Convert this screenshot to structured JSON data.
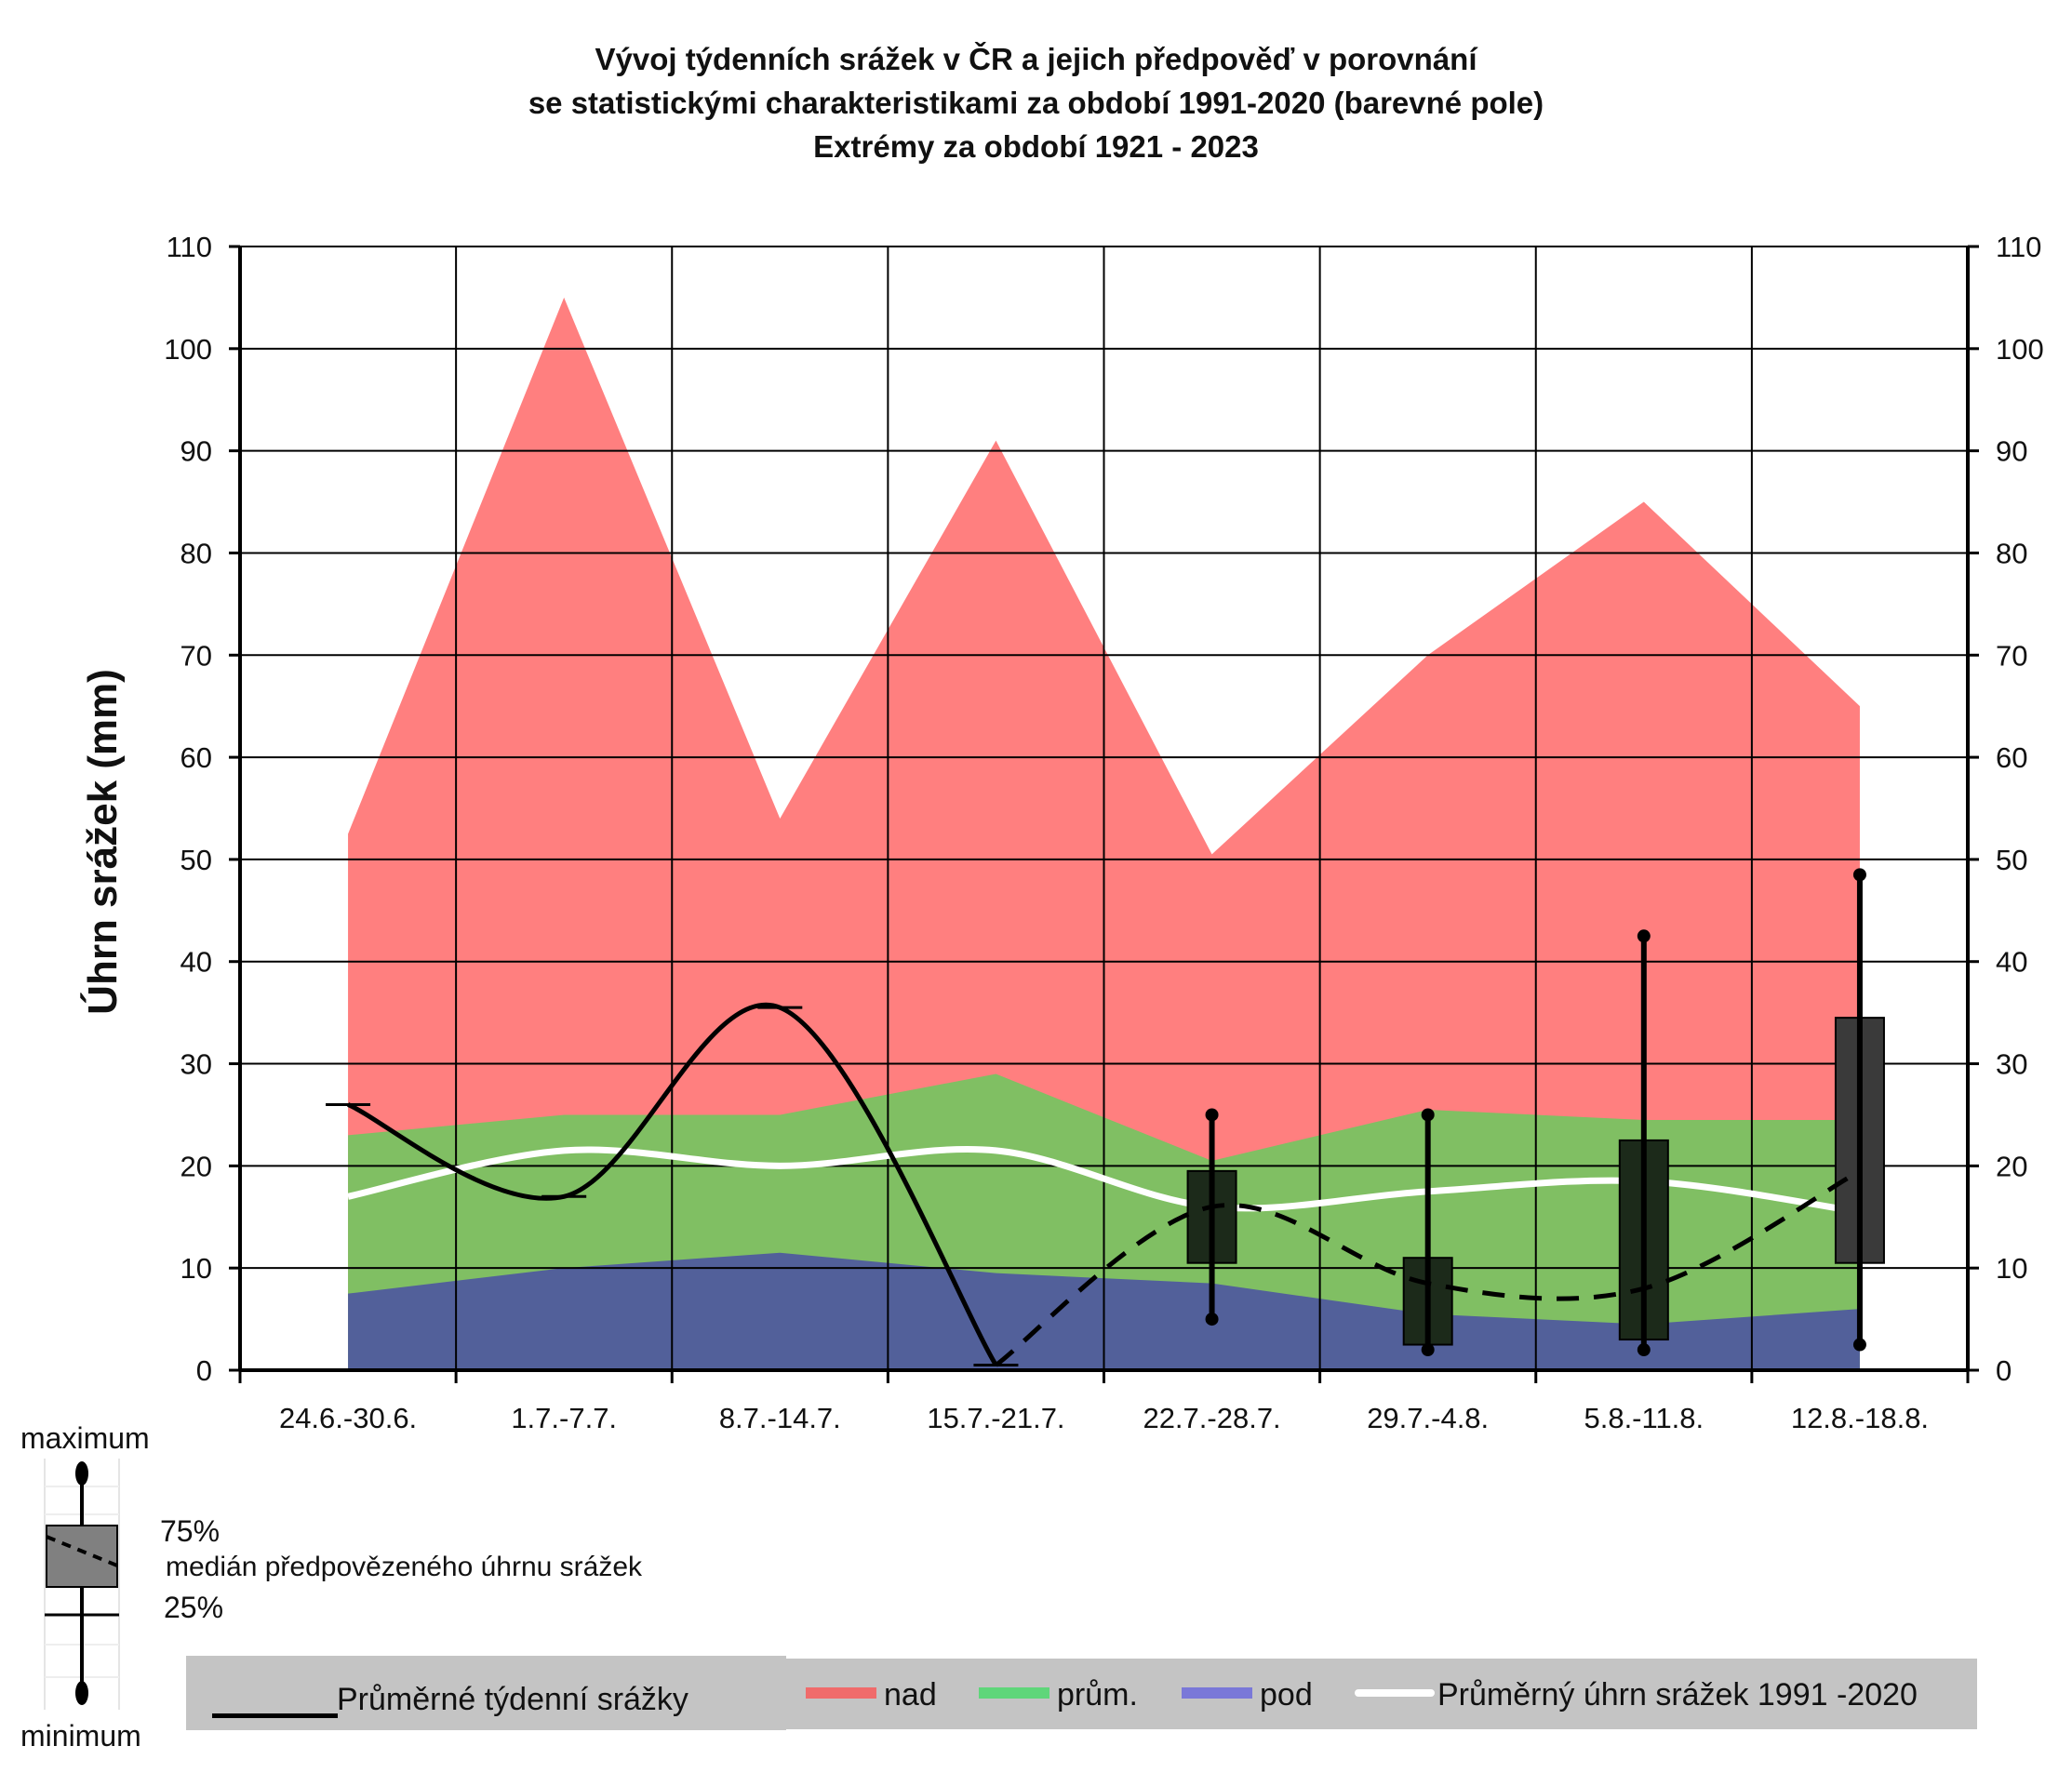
{
  "header": {
    "title_line1": "Vývoj týdenních srážek v ČR a jejich předpověď v porovnání",
    "title_line2": "se statistickými charakteristikami za období 1991-2020 (barevné pole)",
    "title_line3": "Extrémy za období 1921 - 2023"
  },
  "chart_data": {
    "type": "area",
    "ylabel": "Úhrn srážek (mm)",
    "xlabel": "",
    "ylim": [
      0,
      110
    ],
    "yticks": [
      0,
      10,
      20,
      30,
      40,
      50,
      60,
      70,
      80,
      90,
      100,
      110
    ],
    "ytick_labels": [
      "0",
      "10",
      "20",
      "30",
      "40",
      "50",
      "60",
      "70",
      "80",
      "90",
      "100",
      "110"
    ],
    "secondary_y_axis": true,
    "grid": true,
    "categories": [
      "24.6.-30.6.",
      "1.7.-7.7.",
      "8.7.-14.7.",
      "15.7.-21.7.",
      "22.7.-28.7.",
      "29.7.-4.8.",
      "5.8.-11.8.",
      "12.8.-18.8."
    ],
    "bands": {
      "maximum_1921_2023": [
        52.5,
        105,
        54,
        91,
        50.5,
        70,
        85,
        65
      ],
      "nad_lower_bound": [
        23,
        25,
        25,
        29,
        20.5,
        25.5,
        24.5,
        24.5
      ],
      "pod_upper_bound": [
        7.5,
        10,
        11.5,
        9.5,
        8.5,
        5.5,
        4.5,
        6
      ]
    },
    "series": [
      {
        "name": "Průměrné týdenní srážky",
        "style": "solid-black",
        "values": [
          26,
          17,
          35.5,
          0.5,
          null,
          null,
          null,
          null
        ]
      },
      {
        "name": "Průměrný úhrn srážek 1991 -2020",
        "style": "white",
        "values": [
          17,
          21.5,
          20,
          21.5,
          16,
          17.5,
          18.5,
          15.5
        ]
      },
      {
        "name": "medián předpovězeného úhrnu srážek",
        "style": "dashed-black",
        "values": [
          null,
          null,
          null,
          0.5,
          16,
          8.5,
          8,
          19.5
        ]
      }
    ],
    "forecast_boxes": [
      {
        "category": "22.7.-28.7.",
        "min": 5,
        "q25": 10.5,
        "q75": 19.5,
        "max": 25
      },
      {
        "category": "29.7.-4.8.",
        "min": 2,
        "q25": 2.5,
        "q75": 11,
        "max": 25
      },
      {
        "category": "5.8.-11.8.",
        "min": 2,
        "q25": 3,
        "q75": 22.5,
        "max": 42.5
      },
      {
        "category": "12.8.-18.8.",
        "min": 2.5,
        "q25": 10.5,
        "q75": 34.5,
        "max": 48.5
      }
    ],
    "colors": {
      "nad": "#ff7f7f",
      "prum": "#80bf63",
      "pod": "#52609a",
      "average": "#ffffff",
      "box": "#1c2a1a",
      "box_last": "#3a3a3a"
    }
  },
  "legend": {
    "observed_label": "Průměrné týdenní srážky",
    "nad_label": "nad",
    "prum_label": "prům.",
    "pod_label": "pod",
    "average_label": "Průměrný úhrn srážek 1991 -2020",
    "swatch_nad": "#f06b6b",
    "swatch_prum": "#5fd67a",
    "swatch_pod": "#7a78d8"
  },
  "box_key": {
    "maximum": "maximum",
    "q75": "75%",
    "median": "medián předpovězeného úhrnu srážek",
    "q25": "25%",
    "minimum": "minimum"
  }
}
